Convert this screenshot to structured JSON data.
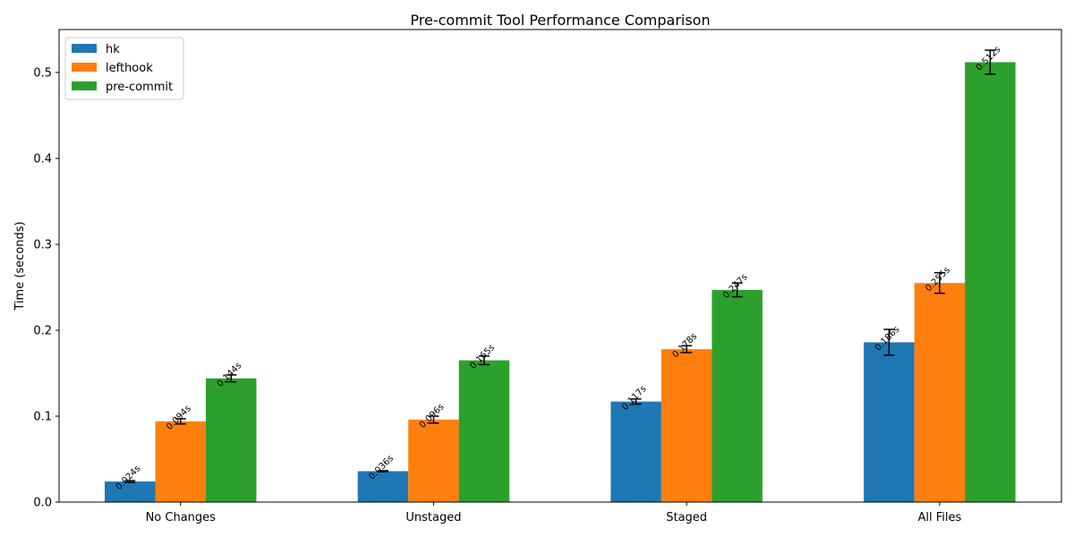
{
  "chart_data": {
    "type": "bar",
    "title": "Pre-commit Tool Performance Comparison",
    "xlabel": "",
    "ylabel": "Time (seconds)",
    "ylim": [
      0,
      0.55
    ],
    "yticks": [
      0.0,
      0.1,
      0.2,
      0.3,
      0.4,
      0.5
    ],
    "ytick_labels": [
      "0.0",
      "0.1",
      "0.2",
      "0.3",
      "0.4",
      "0.5"
    ],
    "grid": false,
    "legend_position": "top-left",
    "categories": [
      "No Changes",
      "Unstaged",
      "Staged",
      "All Files"
    ],
    "series": [
      {
        "name": "hk",
        "color": "#1f77b4",
        "values": [
          0.024,
          0.036,
          0.117,
          0.186
        ],
        "errors": [
          0.001,
          0.0005,
          0.003,
          0.015
        ],
        "labels": [
          "0.024s",
          "0.036s",
          "0.117s",
          "0.186s"
        ]
      },
      {
        "name": "lefthook",
        "color": "#ff7f0e",
        "values": [
          0.094,
          0.096,
          0.178,
          0.255
        ],
        "errors": [
          0.003,
          0.004,
          0.004,
          0.012
        ],
        "labels": [
          "0.094s",
          "0.096s",
          "0.178s",
          "0.255s"
        ]
      },
      {
        "name": "pre-commit",
        "color": "#2ca02c",
        "values": [
          0.144,
          0.165,
          0.247,
          0.512
        ],
        "errors": [
          0.004,
          0.005,
          0.008,
          0.014
        ],
        "labels": [
          "0.144s",
          "0.165s",
          "0.247s",
          "0.512s"
        ]
      }
    ]
  }
}
